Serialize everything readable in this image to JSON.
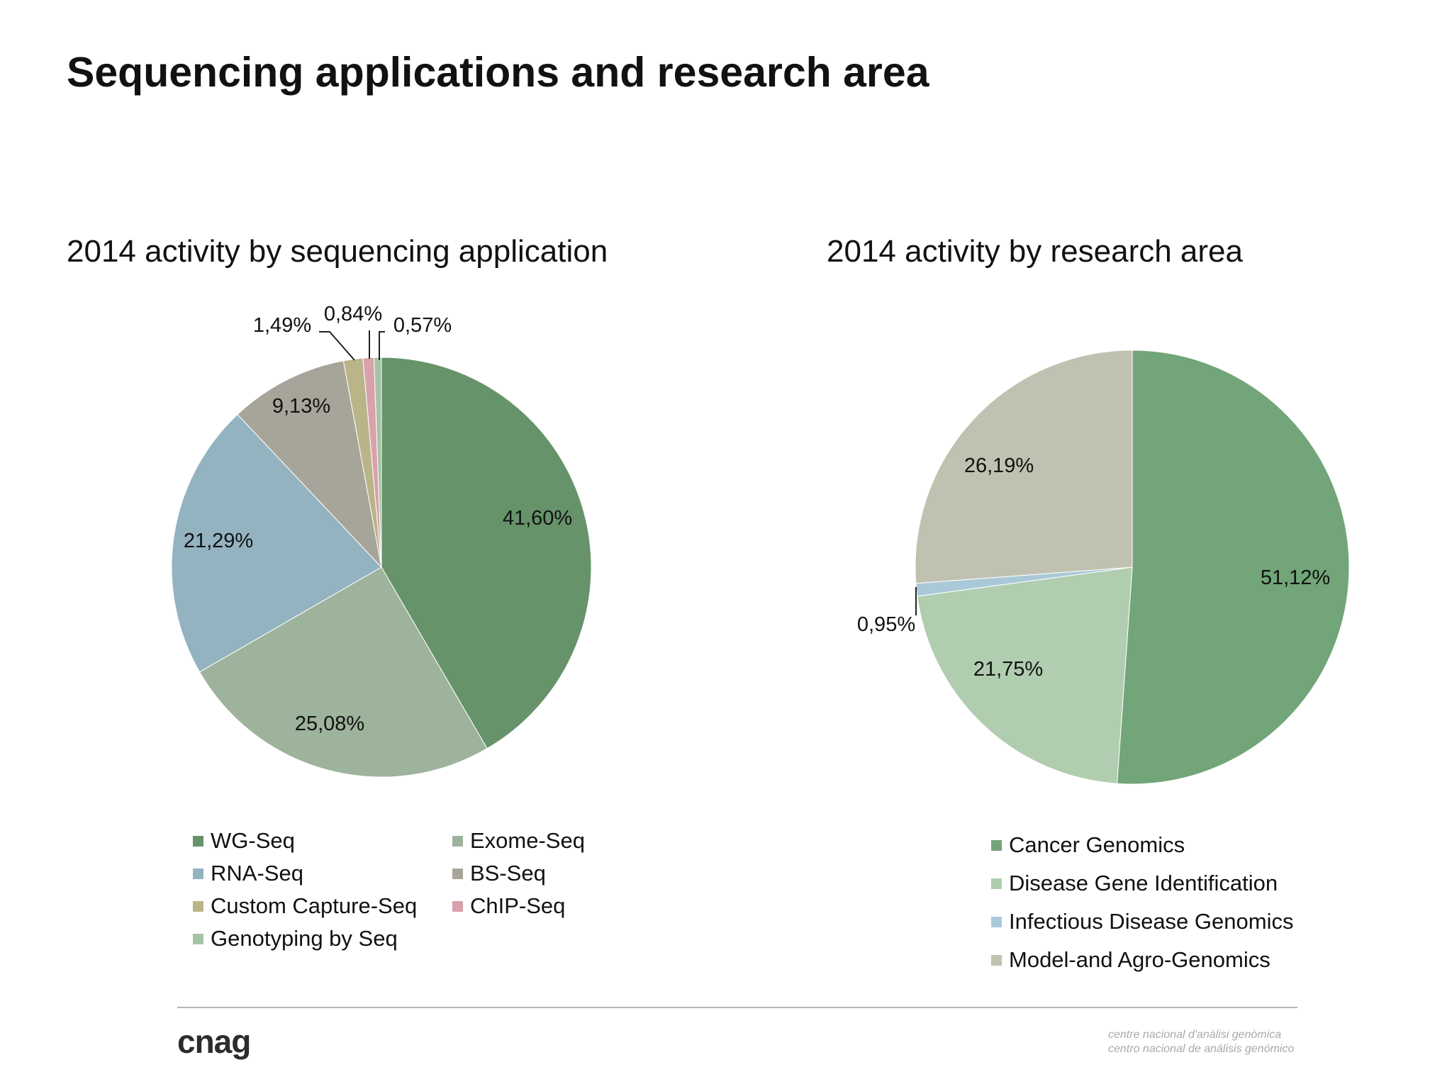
{
  "slide": {
    "title": "Sequencing applications and research area",
    "footer_logo": "cnag",
    "footer_lines": [
      "centre nacional d'anàlisi genòmica",
      "centro nacional de análisis genómico"
    ]
  },
  "chart_data": [
    {
      "type": "pie",
      "title": "2014 activity by sequencing  application",
      "legend_position": "bottom",
      "slices": [
        {
          "label": "WG-Seq",
          "value": 41.6,
          "display": "41,60%",
          "color": "#67936b"
        },
        {
          "label": "Exome-Seq",
          "value": 25.08,
          "display": "25,08%",
          "color": "#9db39b"
        },
        {
          "label": "RNA-Seq",
          "value": 21.29,
          "display": "21,29%",
          "color": "#94b3c1"
        },
        {
          "label": "BS-Seq",
          "value": 9.13,
          "display": "9,13%",
          "color": "#a7a59a"
        },
        {
          "label": "Custom Capture-Seq",
          "value": 1.49,
          "display": "1,49%",
          "color": "#b9b589"
        },
        {
          "label": "ChIP-Seq",
          "value": 0.84,
          "display": "0,84%",
          "color": "#d8a1ac"
        },
        {
          "label": "Genotyping by Seq",
          "value": 0.57,
          "display": "0,57%",
          "color": "#a6c4a4"
        }
      ]
    },
    {
      "type": "pie",
      "title": "2014 activity by research area",
      "legend_position": "bottom",
      "slices": [
        {
          "label": "Cancer Genomics",
          "value": 51.12,
          "display": "51,12%",
          "color": "#72a579"
        },
        {
          "label": "Disease Gene Identification",
          "value": 21.75,
          "display": "21,75%",
          "color": "#b1cdb0"
        },
        {
          "label": "Infectious Disease Genomics",
          "value": 0.95,
          "display": "0,95%",
          "color": "#aac9d8"
        },
        {
          "label": "Model-and Agro-Genomics",
          "value": 26.19,
          "display": "26,19%",
          "color": "#c1c1b1"
        }
      ]
    }
  ]
}
